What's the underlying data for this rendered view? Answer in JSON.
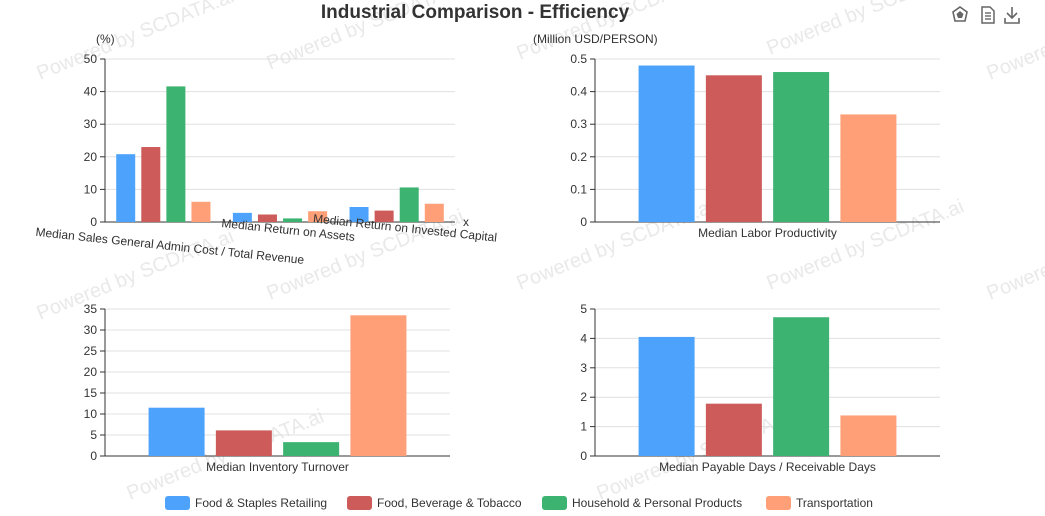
{
  "title": "Industrial Comparison - Efficiency",
  "watermark": "Powered by SCDATA.ai",
  "toolbox": {
    "icons": [
      "restore-icon",
      "data-view-icon",
      "download-icon"
    ]
  },
  "legend": {
    "placement": "bottom-center",
    "items": [
      {
        "label": "Food & Staples Retailing",
        "color": "#4da3fb"
      },
      {
        "label": "Food, Beverage & Tobacco",
        "color": "#cc5b5a"
      },
      {
        "label": "Household & Personal Products",
        "color": "#3cb371"
      },
      {
        "label": "Transportation",
        "color": "#ff9f78"
      }
    ]
  },
  "chart_data": [
    {
      "type": "bar",
      "ylabel": "(%)",
      "xlabel": "x",
      "categories": [
        "Median Sales General Admin Cost / Total Revenue",
        "Median Return on Assets",
        "Median Return on Invested Capital"
      ],
      "ylim": [
        0,
        50
      ],
      "yticks": [
        "0",
        "10",
        "20",
        "30",
        "40",
        "50"
      ],
      "grid": true,
      "series": [
        {
          "name": "Food & Staples Retailing",
          "values": [
            20.8,
            2.8,
            4.6
          ]
        },
        {
          "name": "Food, Beverage & Tobacco",
          "values": [
            23,
            2.3,
            3.5
          ]
        },
        {
          "name": "Household & Personal Products",
          "values": [
            41.6,
            1.1,
            10.6
          ]
        },
        {
          "name": "Transportation",
          "values": [
            6.2,
            3.3,
            5.6
          ]
        }
      ]
    },
    {
      "type": "bar",
      "ylabel": "(Million USD/PERSON)",
      "categories": [
        "Median Labor Productivity"
      ],
      "ylim": [
        0,
        0.5
      ],
      "yticks": [
        "0",
        "0.1",
        "0.2",
        "0.3",
        "0.4",
        "0.5"
      ],
      "grid": true,
      "series": [
        {
          "name": "Food & Staples Retailing",
          "values": [
            0.48
          ]
        },
        {
          "name": "Food, Beverage & Tobacco",
          "values": [
            0.45
          ]
        },
        {
          "name": "Household & Personal Products",
          "values": [
            0.46
          ]
        },
        {
          "name": "Transportation",
          "values": [
            0.33
          ]
        }
      ]
    },
    {
      "type": "bar",
      "categories": [
        "Median Inventory Turnover"
      ],
      "ylim": [
        0,
        35
      ],
      "yticks": [
        "0",
        "5",
        "10",
        "15",
        "20",
        "25",
        "30",
        "35"
      ],
      "grid": true,
      "series": [
        {
          "name": "Food & Staples Retailing",
          "values": [
            11.5
          ]
        },
        {
          "name": "Food, Beverage & Tobacco",
          "values": [
            6.1
          ]
        },
        {
          "name": "Household & Personal Products",
          "values": [
            3.3
          ]
        },
        {
          "name": "Transportation",
          "values": [
            33.5
          ]
        }
      ]
    },
    {
      "type": "bar",
      "categories": [
        "Median Payable Days / Receivable Days"
      ],
      "ylim": [
        0,
        5
      ],
      "yticks": [
        "0",
        "1",
        "2",
        "3",
        "4",
        "5"
      ],
      "grid": true,
      "series": [
        {
          "name": "Food & Staples Retailing",
          "values": [
            4.05
          ]
        },
        {
          "name": "Food, Beverage & Tobacco",
          "values": [
            1.78
          ]
        },
        {
          "name": "Household & Personal Products",
          "values": [
            4.72
          ]
        },
        {
          "name": "Transportation",
          "values": [
            1.38
          ]
        }
      ]
    }
  ]
}
